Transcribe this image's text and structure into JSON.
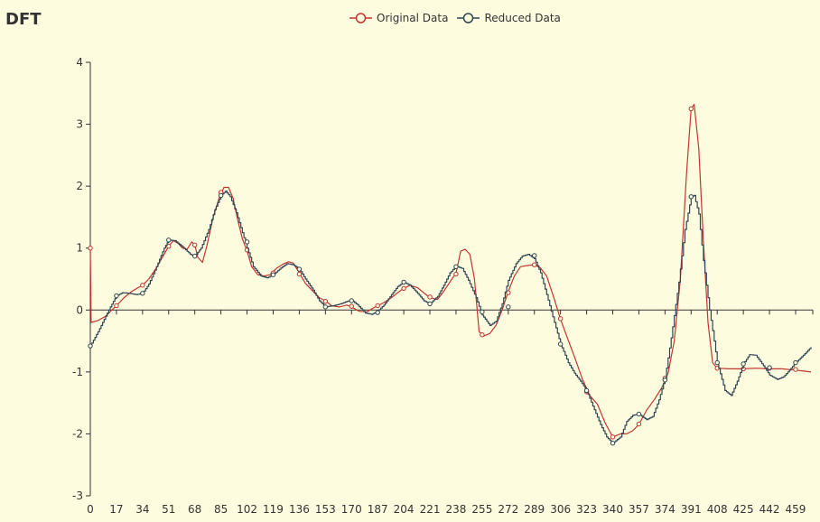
{
  "title": "DFT",
  "legend": [
    {
      "name": "Original Data",
      "color": "#c23531"
    },
    {
      "name": "Reduced Data",
      "color": "#2f4554"
    }
  ],
  "chart_data": {
    "type": "line",
    "title": "DFT",
    "xlabel": "",
    "ylabel": "",
    "xlim": [
      0,
      469
    ],
    "ylim": [
      -3,
      4
    ],
    "x_ticks": [
      0,
      17,
      34,
      51,
      68,
      85,
      102,
      119,
      136,
      153,
      170,
      187,
      204,
      221,
      238,
      255,
      272,
      289,
      306,
      323,
      340,
      357,
      374,
      391,
      408,
      425,
      442,
      459
    ],
    "y_ticks": [
      -3,
      -2,
      -1,
      0,
      1,
      2,
      3,
      4
    ],
    "legend_position": "top-center",
    "grid": false,
    "series": [
      {
        "name": "Original Data",
        "color": "#c23531",
        "points": [
          [
            0,
            1
          ],
          [
            0.5,
            -0.2
          ],
          [
            5,
            -0.17
          ],
          [
            10,
            -0.1
          ],
          [
            14,
            0
          ],
          [
            17,
            0.07
          ],
          [
            22,
            0.2
          ],
          [
            27,
            0.3
          ],
          [
            31,
            0.36
          ],
          [
            34,
            0.4
          ],
          [
            38,
            0.5
          ],
          [
            43,
            0.68
          ],
          [
            48,
            0.9
          ],
          [
            51,
            1.03
          ],
          [
            54,
            1.12
          ],
          [
            57,
            1.08
          ],
          [
            60,
            1.0
          ],
          [
            63,
            0.98
          ],
          [
            66,
            1.1
          ],
          [
            68,
            1.05
          ],
          [
            70,
            0.85
          ],
          [
            73,
            0.77
          ],
          [
            76,
            1.05
          ],
          [
            80,
            1.5
          ],
          [
            84,
            1.82
          ],
          [
            87,
            1.98
          ],
          [
            90,
            1.98
          ],
          [
            93,
            1.8
          ],
          [
            96,
            1.45
          ],
          [
            99,
            1.15
          ],
          [
            102,
            0.95
          ],
          [
            105,
            0.7
          ],
          [
            109,
            0.57
          ],
          [
            113,
            0.55
          ],
          [
            117,
            0.57
          ],
          [
            121,
            0.67
          ],
          [
            126,
            0.75
          ],
          [
            129,
            0.78
          ],
          [
            132,
            0.76
          ],
          [
            136,
            0.6
          ],
          [
            140,
            0.43
          ],
          [
            145,
            0.3
          ],
          [
            149,
            0.2
          ],
          [
            153,
            0.15
          ],
          [
            157,
            0.07
          ],
          [
            162,
            0.05
          ],
          [
            167,
            0.08
          ],
          [
            170,
            0.05
          ],
          [
            175,
            -0.02
          ],
          [
            180,
            -0.03
          ],
          [
            184,
            0.03
          ],
          [
            187,
            0.07
          ],
          [
            191,
            0.12
          ],
          [
            196,
            0.2
          ],
          [
            200,
            0.28
          ],
          [
            204,
            0.35
          ],
          [
            208,
            0.4
          ],
          [
            213,
            0.36
          ],
          [
            217,
            0.28
          ],
          [
            221,
            0.2
          ],
          [
            226,
            0.17
          ],
          [
            230,
            0.3
          ],
          [
            234,
            0.45
          ],
          [
            238,
            0.6
          ],
          [
            241,
            0.95
          ],
          [
            244,
            0.98
          ],
          [
            247,
            0.9
          ],
          [
            250,
            0.5
          ],
          [
            253,
            -0.35
          ],
          [
            256,
            -0.42
          ],
          [
            260,
            -0.38
          ],
          [
            264,
            -0.25
          ],
          [
            268,
            0.0
          ],
          [
            272,
            0.3
          ],
          [
            276,
            0.55
          ],
          [
            280,
            0.7
          ],
          [
            285,
            0.72
          ],
          [
            289,
            0.73
          ],
          [
            293,
            0.68
          ],
          [
            297,
            0.55
          ],
          [
            302,
            0.17
          ],
          [
            306,
            -0.15
          ],
          [
            310,
            -0.42
          ],
          [
            315,
            -0.75
          ],
          [
            320,
            -1.1
          ],
          [
            325,
            -1.38
          ],
          [
            330,
            -1.52
          ],
          [
            335,
            -1.82
          ],
          [
            340,
            -2.05
          ],
          [
            345,
            -2.0
          ],
          [
            349,
            -2.0
          ],
          [
            353,
            -1.95
          ],
          [
            357,
            -1.85
          ],
          [
            362,
            -1.62
          ],
          [
            367,
            -1.45
          ],
          [
            372,
            -1.25
          ],
          [
            376,
            -1.02
          ],
          [
            380,
            -0.5
          ],
          [
            384,
            0.5
          ],
          [
            388,
            2.2
          ],
          [
            391,
            3.25
          ],
          [
            393,
            3.32
          ],
          [
            396,
            2.6
          ],
          [
            399,
            1.1
          ],
          [
            402,
            -0.2
          ],
          [
            405,
            -0.85
          ],
          [
            408,
            -0.94
          ],
          [
            415,
            -0.95
          ],
          [
            425,
            -0.95
          ],
          [
            433,
            -0.94
          ],
          [
            442,
            -0.95
          ],
          [
            450,
            -0.95
          ],
          [
            459,
            -0.97
          ],
          [
            469,
            -1.0
          ]
        ],
        "markers": [
          [
            0,
            1
          ],
          [
            17,
            0.07
          ],
          [
            34,
            0.4
          ],
          [
            51,
            1.03
          ],
          [
            68,
            1.05
          ],
          [
            85,
            1.9
          ],
          [
            102,
            0.97
          ],
          [
            119,
            0.6
          ],
          [
            136,
            0.58
          ],
          [
            153,
            0.14
          ],
          [
            170,
            0.06
          ],
          [
            187,
            0.07
          ],
          [
            204,
            0.35
          ],
          [
            221,
            0.21
          ],
          [
            238,
            0.58
          ],
          [
            255,
            -0.4
          ],
          [
            272,
            0.28
          ],
          [
            289,
            0.73
          ],
          [
            306,
            -0.14
          ],
          [
            323,
            -1.32
          ],
          [
            340,
            -2.05
          ],
          [
            357,
            -1.84
          ],
          [
            374,
            -1.1
          ],
          [
            391,
            3.25
          ],
          [
            408,
            -0.94
          ],
          [
            425,
            -0.95
          ],
          [
            442,
            -0.94
          ],
          [
            459,
            -0.96
          ]
        ]
      },
      {
        "name": "Reduced Data",
        "color": "#2f4554",
        "points": [
          [
            0,
            -0.58
          ],
          [
            5,
            -0.35
          ],
          [
            10,
            -0.1
          ],
          [
            13,
            0.05
          ],
          [
            17,
            0.23
          ],
          [
            21,
            0.28
          ],
          [
            25,
            0.27
          ],
          [
            30,
            0.25
          ],
          [
            34,
            0.27
          ],
          [
            38,
            0.42
          ],
          [
            43,
            0.7
          ],
          [
            48,
            1.0
          ],
          [
            51,
            1.13
          ],
          [
            55,
            1.12
          ],
          [
            60,
            1.02
          ],
          [
            65,
            0.9
          ],
          [
            68,
            0.87
          ],
          [
            72,
            1.0
          ],
          [
            77,
            1.3
          ],
          [
            81,
            1.62
          ],
          [
            85,
            1.85
          ],
          [
            88,
            1.92
          ],
          [
            91,
            1.83
          ],
          [
            95,
            1.57
          ],
          [
            99,
            1.25
          ],
          [
            102,
            1.0
          ],
          [
            106,
            0.7
          ],
          [
            111,
            0.55
          ],
          [
            115,
            0.52
          ],
          [
            119,
            0.57
          ],
          [
            124,
            0.68
          ],
          [
            128,
            0.75
          ],
          [
            132,
            0.73
          ],
          [
            136,
            0.66
          ],
          [
            140,
            0.5
          ],
          [
            145,
            0.32
          ],
          [
            149,
            0.15
          ],
          [
            153,
            0.05
          ],
          [
            158,
            0.07
          ],
          [
            163,
            0.1
          ],
          [
            167,
            0.14
          ],
          [
            170,
            0.16
          ],
          [
            174,
            0.08
          ],
          [
            179,
            -0.05
          ],
          [
            183,
            -0.07
          ],
          [
            187,
            -0.02
          ],
          [
            191,
            0.08
          ],
          [
            196,
            0.25
          ],
          [
            200,
            0.38
          ],
          [
            204,
            0.45
          ],
          [
            208,
            0.4
          ],
          [
            213,
            0.27
          ],
          [
            217,
            0.15
          ],
          [
            221,
            0.1
          ],
          [
            226,
            0.22
          ],
          [
            230,
            0.4
          ],
          [
            234,
            0.6
          ],
          [
            238,
            0.71
          ],
          [
            242,
            0.67
          ],
          [
            246,
            0.48
          ],
          [
            251,
            0.2
          ],
          [
            255,
            -0.08
          ],
          [
            260,
            -0.25
          ],
          [
            264,
            -0.18
          ],
          [
            268,
            0.1
          ],
          [
            272,
            0.48
          ],
          [
            277,
            0.75
          ],
          [
            281,
            0.87
          ],
          [
            285,
            0.9
          ],
          [
            289,
            0.83
          ],
          [
            293,
            0.6
          ],
          [
            297,
            0.25
          ],
          [
            302,
            -0.2
          ],
          [
            306,
            -0.55
          ],
          [
            311,
            -0.85
          ],
          [
            315,
            -1.02
          ],
          [
            319,
            -1.15
          ],
          [
            323,
            -1.3
          ],
          [
            327,
            -1.55
          ],
          [
            332,
            -1.85
          ],
          [
            336,
            -2.05
          ],
          [
            340,
            -2.15
          ],
          [
            345,
            -2.05
          ],
          [
            349,
            -1.8
          ],
          [
            353,
            -1.7
          ],
          [
            357,
            -1.68
          ],
          [
            362,
            -1.77
          ],
          [
            366,
            -1.72
          ],
          [
            370,
            -1.45
          ],
          [
            374,
            -1.1
          ],
          [
            378,
            -0.45
          ],
          [
            383,
            0.45
          ],
          [
            387,
            1.3
          ],
          [
            391,
            1.83
          ],
          [
            393,
            1.85
          ],
          [
            396,
            1.55
          ],
          [
            399,
            0.8
          ],
          [
            403,
            0.0
          ],
          [
            406,
            -0.5
          ],
          [
            408,
            -0.85
          ],
          [
            413,
            -1.3
          ],
          [
            417,
            -1.38
          ],
          [
            421,
            -1.15
          ],
          [
            425,
            -0.87
          ],
          [
            429,
            -0.72
          ],
          [
            433,
            -0.73
          ],
          [
            438,
            -0.9
          ],
          [
            442,
            -1.05
          ],
          [
            447,
            -1.12
          ],
          [
            451,
            -1.08
          ],
          [
            455,
            -0.97
          ],
          [
            459,
            -0.85
          ],
          [
            464,
            -0.73
          ],
          [
            469,
            -0.6
          ]
        ],
        "markers": [
          [
            0,
            -0.58
          ],
          [
            17,
            0.23
          ],
          [
            34,
            0.27
          ],
          [
            51,
            1.13
          ],
          [
            68,
            0.87
          ],
          [
            85,
            1.85
          ],
          [
            102,
            1.1
          ],
          [
            119,
            0.57
          ],
          [
            136,
            0.66
          ],
          [
            153,
            0.05
          ],
          [
            170,
            0.15
          ],
          [
            187,
            -0.04
          ],
          [
            204,
            0.45
          ],
          [
            221,
            0.1
          ],
          [
            238,
            0.7
          ],
          [
            255,
            -0.03
          ],
          [
            272,
            0.05
          ],
          [
            289,
            0.88
          ],
          [
            306,
            -0.55
          ],
          [
            323,
            -1.3
          ],
          [
            340,
            -2.15
          ],
          [
            357,
            -1.68
          ],
          [
            374,
            -1.13
          ],
          [
            391,
            1.83
          ],
          [
            408,
            -0.85
          ],
          [
            425,
            -0.87
          ],
          [
            442,
            -0.93
          ],
          [
            459,
            -0.85
          ]
        ]
      }
    ]
  }
}
